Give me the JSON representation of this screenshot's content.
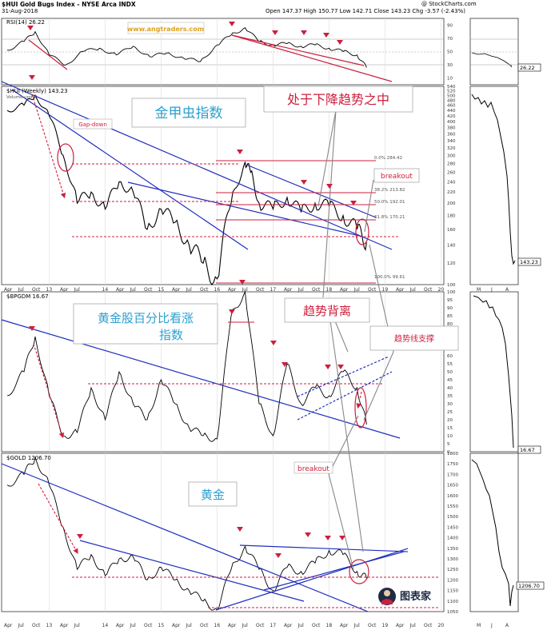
{
  "header": {
    "symbol_line": "$HUI Gold Bugs Index - NYSE Arca INDX",
    "date": "31-Aug-2018",
    "ohlc": "Open 147.37 High 150.77 Low 142.71 Close 143.23 Chg -3.57 (-2.43%)",
    "credit": "@ StockCharts.com"
  },
  "watermark_site": "www.angtraders.com",
  "panels": {
    "rsi": {
      "legend": "RSI(14) 26.22",
      "last": "26.22",
      "levels": [
        "90",
        "70",
        "50",
        "30",
        "10"
      ]
    },
    "hui": {
      "legend": "$HUI (Weekly) 143.23",
      "sub": "Volume undef",
      "last": "143.23"
    },
    "bpgdm": {
      "legend": "$BPGDM 16.67",
      "last": "16.67"
    },
    "gold": {
      "legend": "$GOLD 1206.70",
      "last": "1206.70"
    }
  },
  "annotations": {
    "hui_title": "金甲虫指数",
    "downtrend": "处于下降趋势之中",
    "gap_down": "Gap-down",
    "breakout1": "breakout",
    "bpgdm_title_1": "黄金股百分比看涨",
    "bpgdm_title_2": "指数",
    "divergence": "趋势背离",
    "trend_support": "趋势线支撑",
    "breakout2": "breakout",
    "gold_title": "黄金",
    "logo_text": "图表家"
  },
  "fib_labels": [
    {
      "label": "0.0% 284.42",
      "value": 284.42
    },
    {
      "label": "38.2% 213.82",
      "value": 213.82
    },
    {
      "label": "50.0% 192.01",
      "value": 192.01
    },
    {
      "label": "61.8% 170.21",
      "value": 170.21
    },
    {
      "label": "100.0% 99.61",
      "value": 99.61
    }
  ],
  "x_axis": {
    "labels": [
      "Apr",
      "Jul",
      "Oct",
      "13",
      "Apr",
      "Jul",
      "14",
      "Apr",
      "Jul",
      "Oct",
      "15",
      "Apr",
      "Jul",
      "Oct",
      "16",
      "Apr",
      "Jul",
      "Oct",
      "17",
      "Apr",
      "Jul",
      "Oct",
      "18",
      "Apr",
      "Jul",
      "Oct",
      "19",
      "Apr",
      "Jul",
      "Oct",
      "20"
    ]
  },
  "side_x_axis": {
    "labels": [
      "M",
      "J",
      "A"
    ]
  },
  "chart_data": [
    {
      "type": "line",
      "name": "RSI(14)",
      "ylim": [
        0,
        100
      ],
      "yticks": [
        90,
        70,
        50,
        30,
        10
      ],
      "x": [
        2012.25,
        2012.55,
        2012.75,
        2013.0,
        2013.3,
        2013.6,
        2013.9,
        2014.2,
        2014.5,
        2014.8,
        2015.1,
        2015.4,
        2015.7,
        2016.0,
        2016.25,
        2016.5,
        2016.75,
        2017.0,
        2017.25,
        2017.5,
        2017.75,
        2018.0,
        2018.25,
        2018.5,
        2018.67
      ],
      "values": [
        52,
        65,
        80,
        45,
        30,
        50,
        55,
        45,
        58,
        42,
        48,
        40,
        35,
        60,
        75,
        86,
        65,
        60,
        62,
        58,
        60,
        55,
        50,
        45,
        26
      ]
    },
    {
      "type": "line",
      "name": "$HUI (Weekly)",
      "ylim": [
        100,
        540
      ],
      "yticks": [
        540,
        520,
        500,
        480,
        460,
        440,
        420,
        400,
        380,
        360,
        340,
        320,
        300,
        280,
        260,
        240,
        220,
        200,
        180,
        160,
        140,
        120,
        100
      ],
      "log_scale": true,
      "x": [
        2012.25,
        2012.55,
        2012.75,
        2013.0,
        2013.25,
        2013.5,
        2013.75,
        2014.0,
        2014.25,
        2014.5,
        2014.75,
        2015.0,
        2015.25,
        2015.5,
        2015.75,
        2016.0,
        2016.25,
        2016.5,
        2016.6,
        2016.75,
        2017.0,
        2017.25,
        2017.5,
        2017.75,
        2018.0,
        2018.25,
        2018.5,
        2018.67
      ],
      "values": [
        440,
        460,
        500,
        420,
        300,
        200,
        220,
        190,
        240,
        220,
        160,
        190,
        170,
        140,
        120,
        105,
        200,
        284,
        260,
        200,
        190,
        210,
        185,
        200,
        195,
        180,
        160,
        143
      ]
    },
    {
      "type": "line",
      "name": "$BPGDM",
      "ylim": [
        0,
        100
      ],
      "yticks": [
        100,
        95,
        90,
        85,
        80,
        75,
        70,
        65,
        60,
        55,
        50,
        45,
        40,
        35,
        30,
        25,
        20,
        15,
        10,
        5,
        0
      ],
      "x": [
        2012.25,
        2012.55,
        2012.75,
        2013.0,
        2013.25,
        2013.5,
        2013.75,
        2014.0,
        2014.25,
        2014.5,
        2014.75,
        2015.0,
        2015.25,
        2015.5,
        2015.75,
        2016.0,
        2016.25,
        2016.5,
        2016.75,
        2017.0,
        2017.25,
        2017.5,
        2017.75,
        2018.0,
        2018.25,
        2018.5,
        2018.67
      ],
      "values": [
        35,
        50,
        72,
        35,
        10,
        12,
        40,
        20,
        50,
        30,
        20,
        45,
        30,
        15,
        10,
        8,
        85,
        100,
        30,
        10,
        55,
        30,
        40,
        35,
        50,
        40,
        17
      ]
    },
    {
      "type": "line",
      "name": "$GOLD",
      "ylim": [
        1050,
        1800
      ],
      "yticks": [
        1800,
        1750,
        1700,
        1650,
        1600,
        1550,
        1500,
        1450,
        1400,
        1350,
        1300,
        1250,
        1200,
        1150,
        1100,
        1050
      ],
      "x": [
        2012.25,
        2012.55,
        2012.75,
        2013.0,
        2013.25,
        2013.5,
        2013.75,
        2014.0,
        2014.25,
        2014.5,
        2014.75,
        2015.0,
        2015.25,
        2015.5,
        2015.75,
        2016.0,
        2016.25,
        2016.5,
        2016.75,
        2017.0,
        2017.25,
        2017.5,
        2017.75,
        2018.0,
        2018.25,
        2018.5,
        2018.67
      ],
      "values": [
        1650,
        1700,
        1780,
        1650,
        1450,
        1250,
        1320,
        1220,
        1300,
        1310,
        1200,
        1260,
        1200,
        1150,
        1100,
        1060,
        1250,
        1360,
        1250,
        1150,
        1260,
        1240,
        1280,
        1340,
        1320,
        1240,
        1206.7
      ]
    }
  ]
}
